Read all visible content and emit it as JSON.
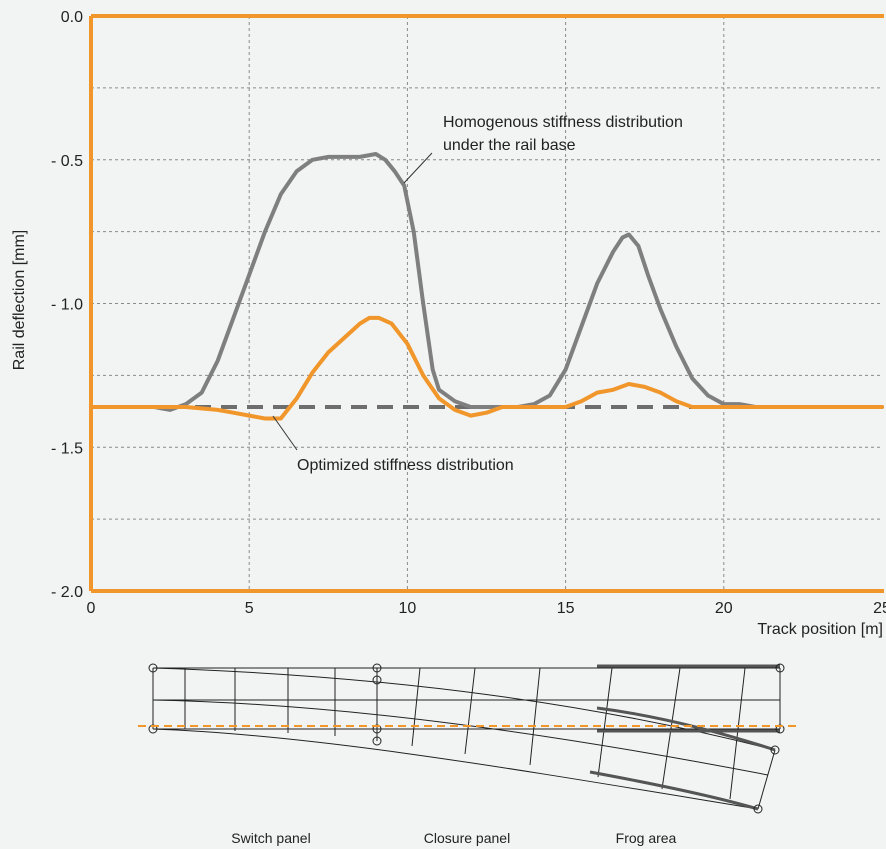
{
  "chart_data": {
    "type": "line",
    "xlabel": "Track position [m]",
    "ylabel": "Rail deflection [mm]",
    "xlim": [
      0,
      25
    ],
    "ylim": [
      -2.0,
      0.0
    ],
    "x_ticks": [
      "0",
      "5",
      "10",
      "15",
      "20",
      "25"
    ],
    "y_ticks": [
      "0.0",
      "- 0.5",
      "- 1.0",
      "- 1.5",
      "- 2.0"
    ],
    "grid": true,
    "colors": {
      "homogeneous": "#7f7f7f",
      "optimized": "#f0962a",
      "axis": "#f0962a",
      "baseline": "#6d6d6d"
    },
    "baseline": -1.36,
    "series": [
      {
        "key": "homogeneous",
        "x": [
          0,
          1,
          2,
          2.5,
          3,
          3.5,
          4,
          4.5,
          5,
          5.5,
          6,
          6.5,
          7,
          7.5,
          8,
          8.5,
          9,
          9.3,
          9.6,
          9.9,
          10.2,
          10.5,
          10.8,
          11,
          11.5,
          12,
          12.5,
          13,
          13.5,
          14,
          14.5,
          15,
          15.5,
          16,
          16.5,
          16.8,
          17,
          17.3,
          17.6,
          18,
          18.5,
          19,
          19.5,
          20,
          20.5,
          21,
          22,
          23,
          24,
          25
        ],
        "y": [
          -1.36,
          -1.36,
          -1.36,
          -1.37,
          -1.35,
          -1.31,
          -1.2,
          -1.05,
          -0.9,
          -0.75,
          -0.62,
          -0.54,
          -0.5,
          -0.49,
          -0.49,
          -0.49,
          -0.48,
          -0.5,
          -0.54,
          -0.59,
          -0.75,
          -1.0,
          -1.23,
          -1.3,
          -1.34,
          -1.36,
          -1.36,
          -1.36,
          -1.36,
          -1.35,
          -1.32,
          -1.23,
          -1.08,
          -0.93,
          -0.82,
          -0.77,
          -0.76,
          -0.8,
          -0.9,
          -1.02,
          -1.15,
          -1.26,
          -1.32,
          -1.35,
          -1.35,
          -1.36,
          -1.36,
          -1.36,
          -1.36,
          -1.36
        ]
      },
      {
        "key": "optimized",
        "x": [
          0,
          1,
          2,
          3,
          4,
          4.5,
          5,
          5.5,
          6,
          6.5,
          7,
          7.5,
          8,
          8.5,
          8.8,
          9.1,
          9.5,
          10,
          10.5,
          11,
          11.5,
          12,
          12.5,
          13,
          14,
          15,
          15.5,
          16,
          16.5,
          17,
          17.5,
          18,
          18.5,
          19,
          19.5,
          20,
          21,
          22,
          23,
          24,
          25
        ],
        "y": [
          -1.36,
          -1.36,
          -1.36,
          -1.36,
          -1.37,
          -1.38,
          -1.39,
          -1.4,
          -1.4,
          -1.33,
          -1.24,
          -1.17,
          -1.12,
          -1.07,
          -1.05,
          -1.05,
          -1.07,
          -1.14,
          -1.25,
          -1.33,
          -1.37,
          -1.39,
          -1.38,
          -1.36,
          -1.36,
          -1.36,
          -1.34,
          -1.31,
          -1.3,
          -1.28,
          -1.29,
          -1.31,
          -1.34,
          -1.36,
          -1.36,
          -1.36,
          -1.36,
          -1.36,
          -1.36,
          -1.36,
          -1.36
        ]
      }
    ],
    "annotations": [
      {
        "lines": [
          "Homogenous stiffness distribution",
          "under the rail base"
        ]
      },
      {
        "lines": [
          "Optimized stiffness distribution"
        ]
      }
    ]
  },
  "schematic": {
    "panels": [
      "Switch panel",
      "Closure panel",
      "Frog area"
    ]
  }
}
